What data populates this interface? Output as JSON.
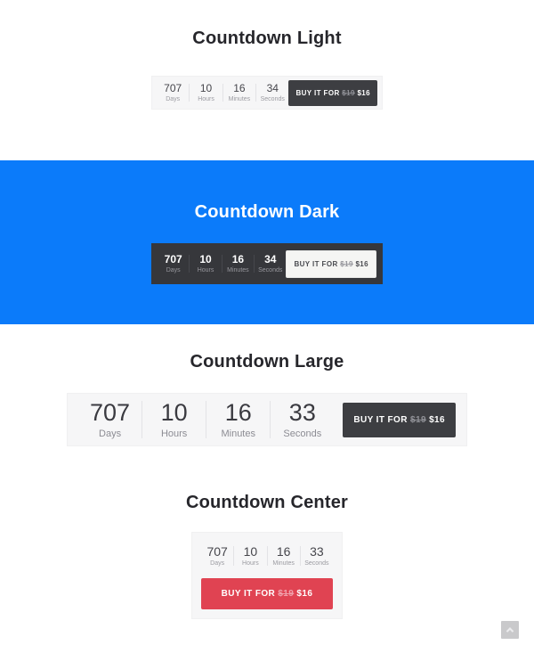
{
  "colors": {
    "accent_blue": "#0b7bfa",
    "dark_button": "#3d3e42",
    "dark_box": "#36373b",
    "light_box": "#f6f6f7",
    "red_button": "#e04352",
    "title_text": "#26262b"
  },
  "sections": [
    {
      "title": "Countdown Light",
      "countdown": {
        "units": [
          {
            "value": "707",
            "label": "Days"
          },
          {
            "value": "10",
            "label": "Hours"
          },
          {
            "value": "16",
            "label": "Minutes"
          },
          {
            "value": "34",
            "label": "Seconds"
          }
        ]
      },
      "button": {
        "label_prefix": "BUY IT FOR ",
        "old_price": "$19",
        "price": " $16"
      }
    },
    {
      "title": "Countdown Dark",
      "countdown": {
        "units": [
          {
            "value": "707",
            "label": "Days"
          },
          {
            "value": "10",
            "label": "Hours"
          },
          {
            "value": "16",
            "label": "Minutes"
          },
          {
            "value": "34",
            "label": "Seconds"
          }
        ]
      },
      "button": {
        "label_prefix": "BUY IT FOR ",
        "old_price": "$19",
        "price": " $16"
      }
    },
    {
      "title": "Countdown Large",
      "countdown": {
        "units": [
          {
            "value": "707",
            "label": "Days"
          },
          {
            "value": "10",
            "label": "Hours"
          },
          {
            "value": "16",
            "label": "Minutes"
          },
          {
            "value": "33",
            "label": "Seconds"
          }
        ]
      },
      "button": {
        "label_prefix": "BUY IT FOR ",
        "old_price": "$19",
        "price": " $16"
      }
    },
    {
      "title": "Countdown Center",
      "countdown": {
        "units": [
          {
            "value": "707",
            "label": "Days"
          },
          {
            "value": "10",
            "label": "Hours"
          },
          {
            "value": "16",
            "label": "Minutes"
          },
          {
            "value": "33",
            "label": "Seconds"
          }
        ]
      },
      "button": {
        "label_prefix": "BUY IT FOR ",
        "old_price": "$19",
        "price": " $16"
      }
    }
  ]
}
